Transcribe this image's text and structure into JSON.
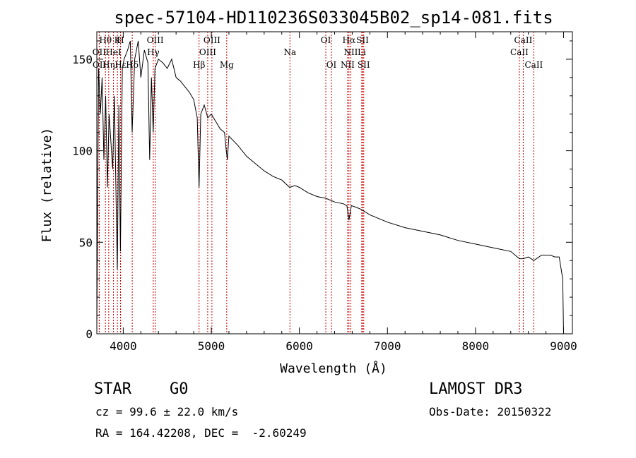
{
  "chart_data": {
    "type": "line",
    "title": "spec-57104-HD110236S033045B02_sp14-081.fits",
    "xlabel": "Wavelength (Å)",
    "ylabel": "Flux (relative)",
    "xlim": [
      3700,
      9100
    ],
    "ylim": [
      0,
      165
    ],
    "x_ticks": [
      4000,
      5000,
      6000,
      7000,
      8000,
      9000
    ],
    "y_ticks": [
      0,
      50,
      100,
      150
    ],
    "line_color": "#000000",
    "marker_color": "#cc0000",
    "series": [
      {
        "name": "flux",
        "x": [
          3700,
          3720,
          3740,
          3760,
          3780,
          3800,
          3820,
          3840,
          3860,
          3880,
          3900,
          3920,
          3933,
          3950,
          3968,
          3990,
          4010,
          4050,
          4080,
          4101,
          4130,
          4170,
          4200,
          4240,
          4280,
          4300,
          4320,
          4340,
          4360,
          4400,
          4450,
          4500,
          4550,
          4600,
          4650,
          4700,
          4750,
          4800,
          4840,
          4861,
          4880,
          4920,
          4960,
          5000,
          5050,
          5100,
          5150,
          5170,
          5183,
          5200,
          5300,
          5400,
          5500,
          5600,
          5700,
          5800,
          5890,
          5950,
          6000,
          6100,
          6200,
          6300,
          6400,
          6500,
          6540,
          6563,
          6590,
          6650,
          6700,
          6800,
          6900,
          7000,
          7200,
          7400,
          7600,
          7800,
          8000,
          8200,
          8400,
          8498,
          8542,
          8600,
          8662,
          8750,
          8850,
          8900,
          8950,
          8990,
          9000
        ],
        "y": [
          0,
          145,
          120,
          140,
          95,
          130,
          80,
          120,
          105,
          90,
          130,
          70,
          35,
          125,
          45,
          145,
          150,
          155,
          160,
          110,
          150,
          160,
          140,
          155,
          148,
          95,
          140,
          110,
          145,
          150,
          148,
          145,
          150,
          140,
          138,
          135,
          132,
          128,
          118,
          80,
          120,
          125,
          118,
          120,
          116,
          112,
          110,
          100,
          95,
          108,
          103,
          97,
          93,
          89,
          86,
          84,
          80,
          81,
          80,
          77,
          75,
          74,
          72,
          71,
          70,
          62,
          70,
          69,
          68,
          65,
          63,
          61,
          58,
          56,
          54,
          51,
          49,
          47,
          45,
          41,
          41,
          42,
          40,
          43,
          43,
          42,
          42,
          30,
          0
        ]
      }
    ],
    "line_markers": [
      {
        "label": "Hθ",
        "wavelength": 3798,
        "row": 0
      },
      {
        "label": "K",
        "wavelength": 3934,
        "row": 0
      },
      {
        "label": "H",
        "wavelength": 3969,
        "row": 0
      },
      {
        "label": "OIII",
        "wavelength": 4363,
        "row": 0
      },
      {
        "label": "OIII",
        "wavelength": 5007,
        "row": 0
      },
      {
        "label": "OI",
        "wavelength": 6300,
        "row": 0
      },
      {
        "label": "Hα",
        "wavelength": 6563,
        "row": 0
      },
      {
        "label": "SII",
        "wavelength": 6717,
        "row": 0
      },
      {
        "label": "CaII",
        "wavelength": 8542,
        "row": 0
      },
      {
        "label": "OII",
        "wavelength": 3727,
        "row": 1
      },
      {
        "label": "HeI",
        "wavelength": 3889,
        "row": 1
      },
      {
        "label": "Hγ",
        "wavelength": 4341,
        "row": 1
      },
      {
        "label": "OIII",
        "wavelength": 4959,
        "row": 1
      },
      {
        "label": "Na",
        "wavelength": 5893,
        "row": 1
      },
      {
        "label": "NII",
        "wavelength": 6584,
        "row": 1
      },
      {
        "label": "Li",
        "wavelength": 6708,
        "row": 1
      },
      {
        "label": "CaII",
        "wavelength": 8498,
        "row": 1
      },
      {
        "label": "OII",
        "wavelength": 3729,
        "row": 2
      },
      {
        "label": "Hη",
        "wavelength": 3835,
        "row": 2
      },
      {
        "label": "Hε",
        "wavelength": 3970,
        "row": 2
      },
      {
        "label": "Hδ",
        "wavelength": 4102,
        "row": 2
      },
      {
        "label": "Hβ",
        "wavelength": 4861,
        "row": 2
      },
      {
        "label": "Mg",
        "wavelength": 5175,
        "row": 2
      },
      {
        "label": "OI",
        "wavelength": 6364,
        "row": 2
      },
      {
        "label": "NII",
        "wavelength": 6548,
        "row": 2
      },
      {
        "label": "SII",
        "wavelength": 6731,
        "row": 2
      },
      {
        "label": "CaII",
        "wavelength": 8662,
        "row": 2
      }
    ]
  },
  "info": {
    "object_class": "STAR",
    "subclass": "G0",
    "survey": "LAMOST DR3",
    "cz": "cz = 99.6 ± 22.0 km/s",
    "obs_date": "Obs-Date: 20150322",
    "coords": "RA = 164.42208, DEC =  -2.60249"
  }
}
